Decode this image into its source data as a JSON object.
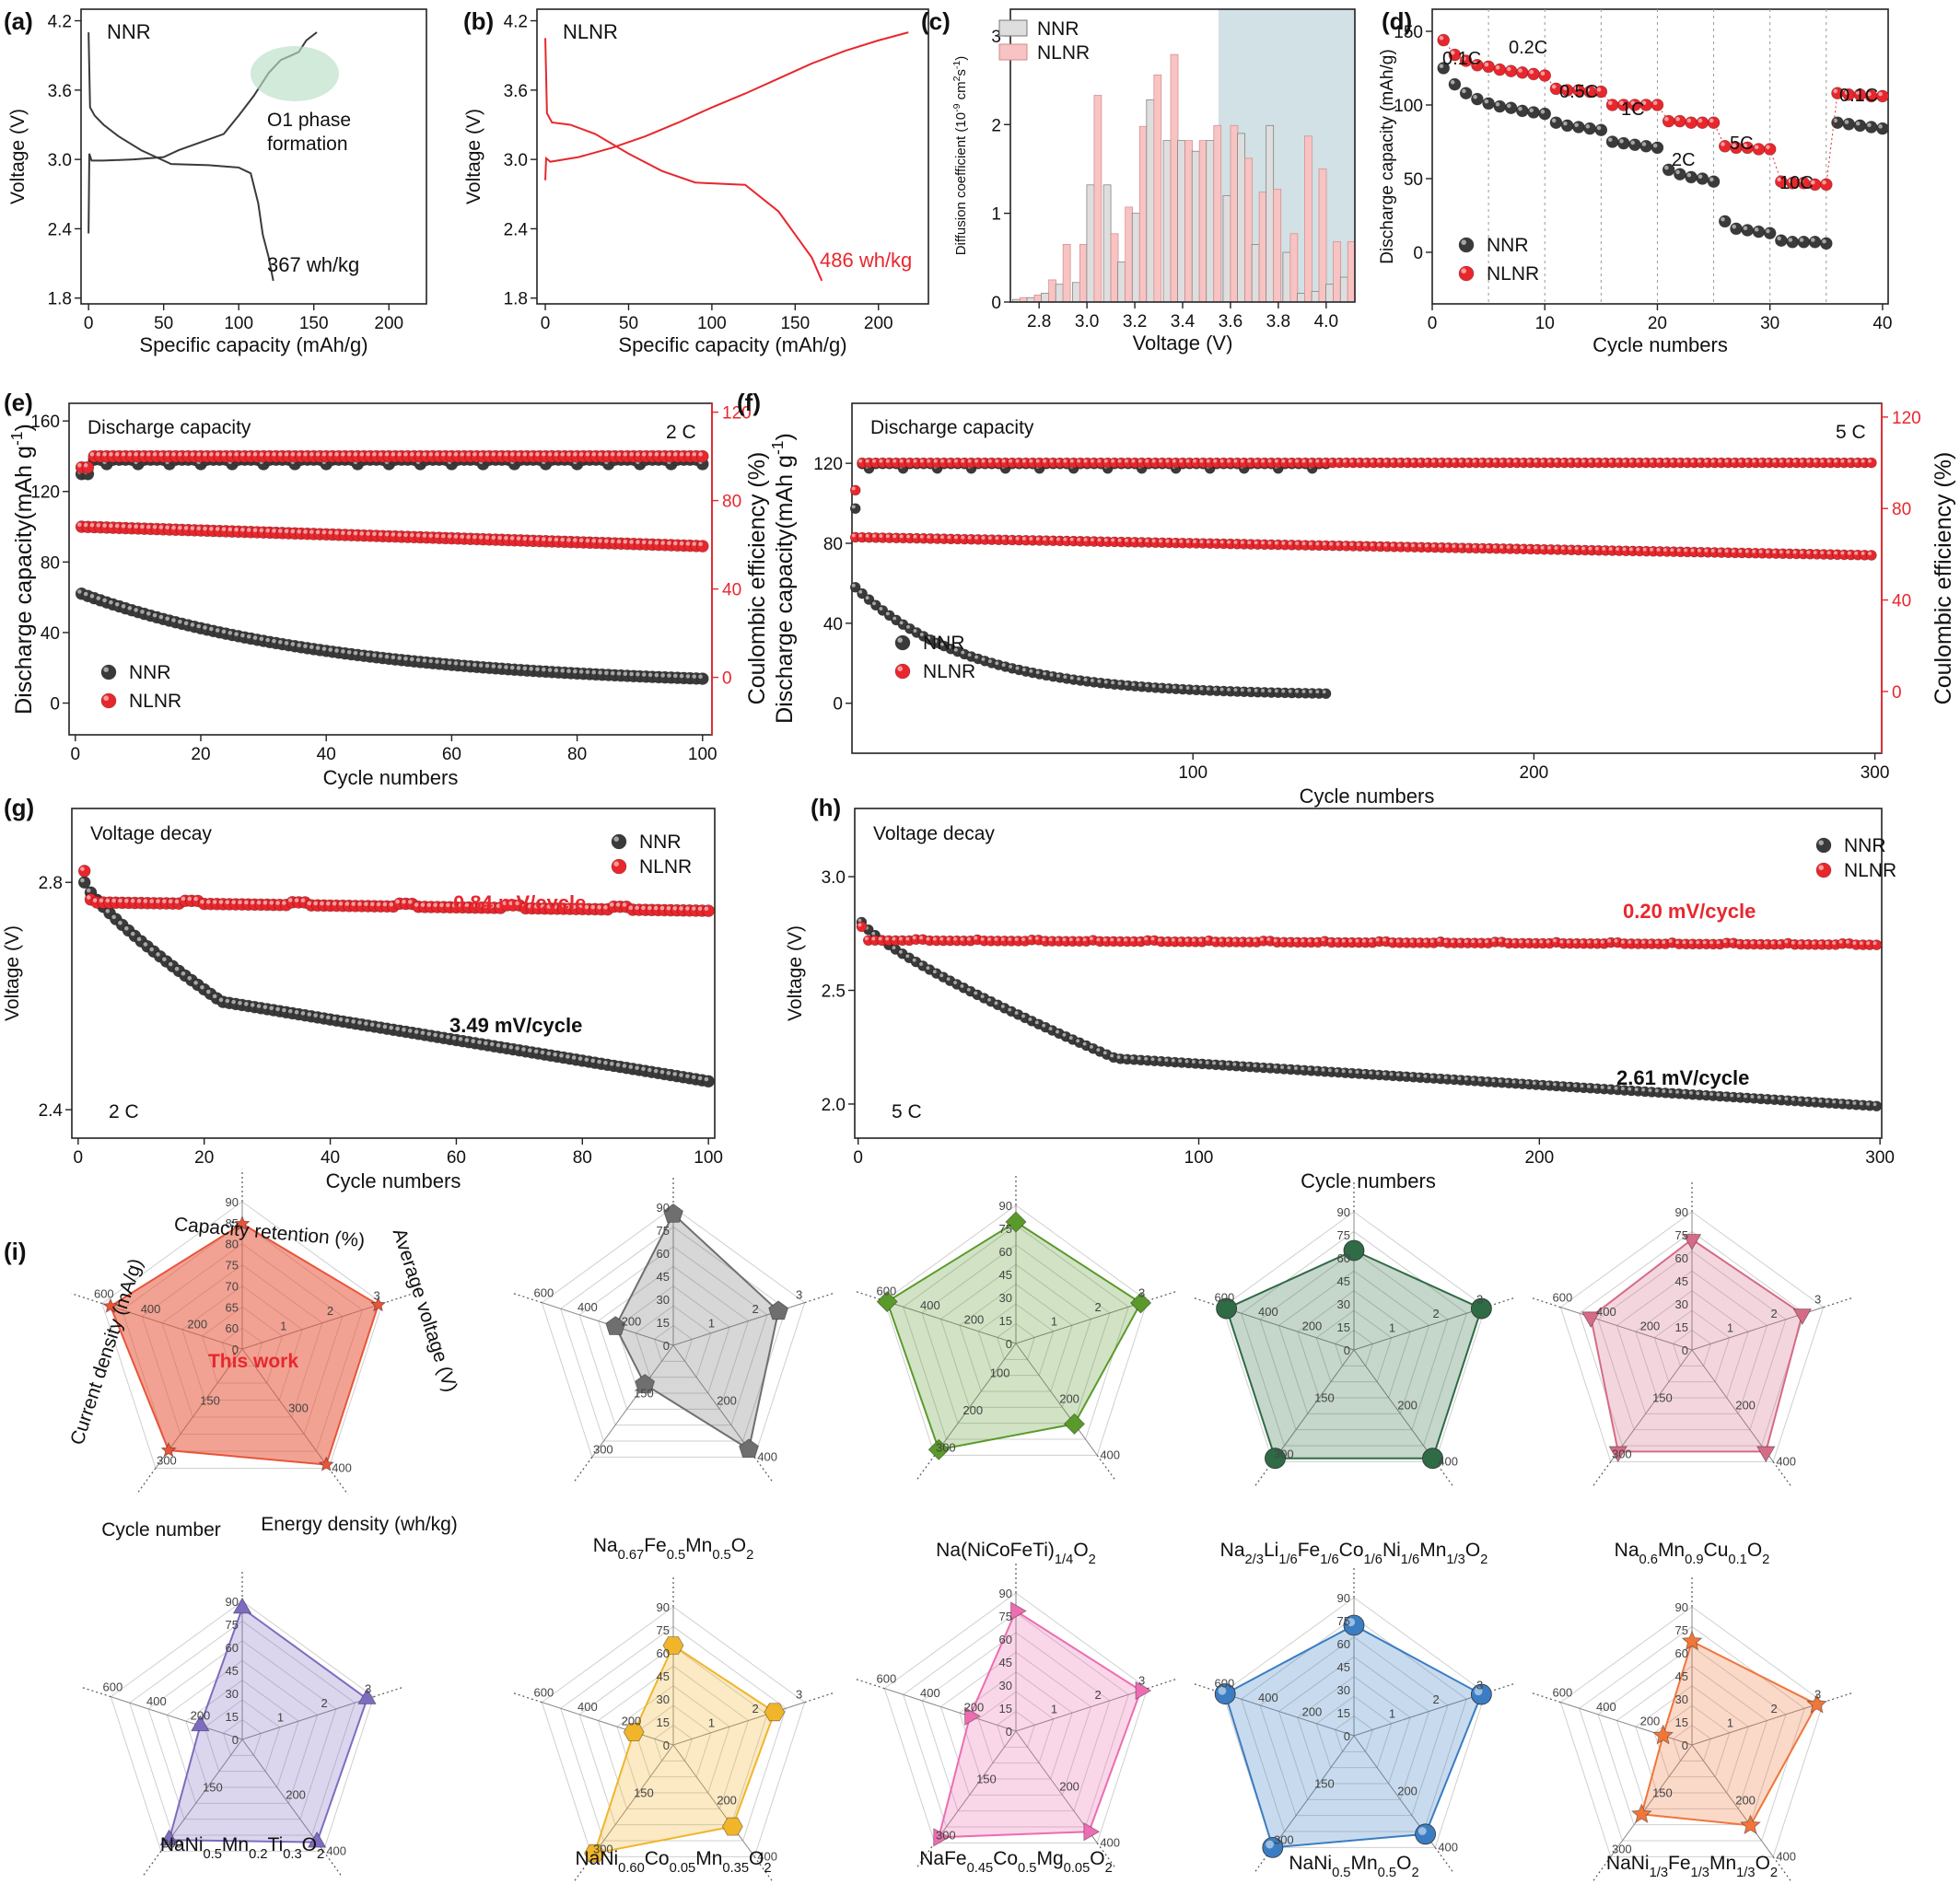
{
  "colors": {
    "nnr": "#3a3a3a",
    "nlnr": "#e8272d",
    "axis": "#222222"
  },
  "chart_data": [
    {
      "id": "a",
      "type": "line",
      "label": "(a)",
      "legend_text": "NNR",
      "annotation": [
        "O1 phase",
        "formation"
      ],
      "energy_label": "367 wh/kg",
      "xlabel": "Specific capacity (mAh/g)",
      "ylabel": "Voltage (V)",
      "xlim": [
        -5,
        225
      ],
      "ylim": [
        1.75,
        4.3
      ],
      "xticks": [
        0,
        50,
        100,
        150,
        200
      ],
      "yticks": [
        1.8,
        2.4,
        3.0,
        3.6,
        4.2
      ],
      "series": [
        {
          "name": "charge",
          "x": [
            0,
            0.5,
            2,
            10,
            30,
            50,
            60,
            75,
            90,
            100,
            110,
            120,
            128,
            135,
            140,
            145,
            152
          ],
          "y": [
            2.36,
            3.05,
            2.99,
            2.99,
            3.0,
            3.02,
            3.08,
            3.15,
            3.22,
            3.38,
            3.55,
            3.75,
            3.86,
            3.9,
            3.93,
            4.03,
            4.1
          ]
        },
        {
          "name": "discharge",
          "x": [
            0,
            1,
            4,
            10,
            20,
            35,
            55,
            80,
            100,
            108,
            113,
            116,
            120,
            123
          ],
          "y": [
            4.1,
            3.45,
            3.38,
            3.3,
            3.2,
            3.08,
            2.96,
            2.95,
            2.93,
            2.88,
            2.62,
            2.35,
            2.15,
            1.95
          ]
        }
      ]
    },
    {
      "id": "b",
      "type": "line",
      "label": "(b)",
      "legend_text": "NLNR",
      "energy_label": "486 wh/kg",
      "xlabel": "Specific capacity (mAh/g)",
      "ylabel": "Voltage (V)",
      "xlim": [
        -5,
        230
      ],
      "ylim": [
        1.75,
        4.3
      ],
      "xticks": [
        0,
        50,
        100,
        150,
        200
      ],
      "yticks": [
        1.8,
        2.4,
        3.0,
        3.6,
        4.2
      ],
      "series": [
        {
          "name": "charge",
          "x": [
            0,
            0.5,
            3,
            20,
            40,
            60,
            80,
            100,
            120,
            140,
            160,
            180,
            200,
            218
          ],
          "y": [
            2.82,
            3.01,
            2.98,
            3.02,
            3.1,
            3.2,
            3.32,
            3.45,
            3.57,
            3.7,
            3.83,
            3.94,
            4.03,
            4.1
          ]
        },
        {
          "name": "discharge",
          "x": [
            0,
            1,
            4,
            15,
            30,
            50,
            70,
            90,
            120,
            140,
            150,
            160,
            166
          ],
          "y": [
            4.05,
            3.4,
            3.32,
            3.3,
            3.22,
            3.05,
            2.9,
            2.8,
            2.78,
            2.55,
            2.35,
            2.15,
            1.95
          ]
        }
      ]
    },
    {
      "id": "c",
      "type": "bar",
      "label": "(c)",
      "xlabel": "Voltage (V)",
      "ylabel": "Diffusion coefficient (10⁻⁹ cm²s⁻¹)",
      "xlim": [
        2.68,
        4.12
      ],
      "ylim": [
        0,
        3.3
      ],
      "shade_from": 3.55,
      "xticks": [
        2.8,
        3.0,
        3.2,
        3.4,
        3.6,
        3.8,
        4.0
      ],
      "yticks": [
        0,
        1,
        2,
        3
      ],
      "x": [
        2.72,
        2.78,
        2.84,
        2.9,
        2.97,
        3.03,
        3.1,
        3.16,
        3.22,
        3.28,
        3.35,
        3.41,
        3.47,
        3.53,
        3.6,
        3.66,
        3.72,
        3.78,
        3.85,
        3.91,
        3.97,
        4.03,
        4.09
      ],
      "series": [
        {
          "name": "NNR",
          "values": [
            0.03,
            0.05,
            0.1,
            0.2,
            0.22,
            1.32,
            1.32,
            0.45,
            1.0,
            2.28,
            1.82,
            1.82,
            1.7,
            1.82,
            1.2,
            1.9,
            0.65,
            1.99,
            0.56,
            0.1,
            0.12,
            0.2,
            0.28
          ]
        },
        {
          "name": "NLNR",
          "values": [
            0.05,
            0.08,
            0.25,
            0.65,
            0.65,
            2.33,
            0.77,
            1.07,
            1.98,
            2.56,
            2.79,
            1.82,
            1.82,
            1.99,
            1.99,
            1.62,
            1.24,
            1.27,
            0.77,
            1.87,
            1.5,
            0.68,
            0.68
          ]
        }
      ]
    },
    {
      "id": "d",
      "type": "scatter",
      "label": "(d)",
      "xlabel": "Cycle numbers",
      "ylabel": "Discharge capacity (mAh/g)",
      "xlim": [
        0,
        40.5
      ],
      "ylim": [
        -35,
        165
      ],
      "xticks": [
        0,
        10,
        20,
        30,
        40
      ],
      "yticks": [
        0,
        50,
        100,
        150
      ],
      "rate_labels": [
        "0.1C",
        "0.2C",
        "0.5C",
        "1C",
        "2C",
        "5C",
        "10C",
        "0.1C"
      ],
      "series": [
        {
          "name": "NNR",
          "values": [
            125,
            114,
            108,
            104,
            101,
            99,
            98,
            96,
            95,
            94,
            88,
            86,
            85,
            84,
            83,
            75,
            74,
            73,
            72,
            71,
            56,
            53,
            51,
            50,
            48,
            21,
            16,
            15,
            14,
            13,
            8,
            7,
            7,
            7,
            6,
            88,
            87,
            86,
            85,
            84
          ]
        },
        {
          "name": "NLNR",
          "values": [
            144,
            134,
            130,
            127,
            126,
            124,
            123,
            122,
            121,
            120,
            111,
            110,
            110,
            109,
            109,
            100,
            100,
            100,
            100,
            100,
            89,
            89,
            88,
            88,
            88,
            72,
            71,
            71,
            70,
            70,
            48,
            47,
            47,
            46,
            46,
            108,
            107,
            107,
            106,
            106
          ]
        }
      ]
    },
    {
      "id": "e",
      "type": "scatter",
      "label": "(e)",
      "title": "Discharge capacity",
      "rate": "2 C",
      "xlabel": "Cycle numbers",
      "ylabel": "Discharge capacity(mAh g⁻¹)",
      "xlim": [
        -1,
        101.5
      ],
      "ylim": [
        -18,
        170
      ],
      "y2lim": [
        -26,
        124
      ],
      "xticks": [
        0,
        20,
        40,
        60,
        80,
        100
      ],
      "yticks": [
        0,
        40,
        80,
        120,
        160
      ],
      "y2ticks": [
        0,
        40,
        80,
        120
      ],
      "series": [
        {
          "name": "NNR",
          "cap_start": 62,
          "cap_end": 9,
          "ce_start": 92,
          "ce_end": 99
        },
        {
          "name": "NLNR",
          "cap_start": 100,
          "cap_end": 89,
          "ce_start": 95,
          "ce_end": 100
        }
      ]
    },
    {
      "id": "f",
      "type": "scatter",
      "label": "(f)",
      "title": "Discharge capacity",
      "rate": "5 C",
      "xlabel": "Cycle numbers",
      "ylabel": "Discharge capacity(mAh g⁻¹)",
      "y2label": "Coulombic efficiency (%)",
      "xlim": [
        0,
        302
      ],
      "ylim": [
        -25,
        150
      ],
      "y2lim": [
        -27,
        126
      ],
      "xticks": [
        100,
        200,
        300
      ],
      "yticks": [
        0,
        40,
        80,
        120
      ],
      "y2ticks": [
        0,
        40,
        80,
        120
      ],
      "series": [
        {
          "name": "NNR",
          "n": 140,
          "cap_start": 58,
          "cap_end": 4,
          "ce_start": 80,
          "ce_end": 100
        },
        {
          "name": "NLNR",
          "n": 300,
          "cap_start": 83,
          "cap_end": 74,
          "ce_start": 88,
          "ce_end": 100
        }
      ]
    },
    {
      "id": "g",
      "type": "scatter",
      "label": "(g)",
      "title": "Voltage decay",
      "rate": "2 C",
      "xlabel": "Cycle numbers",
      "ylabel": "Voltage (V)",
      "xlim": [
        -1,
        101
      ],
      "ylim": [
        2.35,
        2.93
      ],
      "xticks": [
        0,
        20,
        40,
        60,
        80,
        100
      ],
      "yticks": [
        2.4,
        2.8
      ],
      "annotations": {
        "nlnr": "0.84 mV/cycle",
        "nnr": "3.49 mV/cycle"
      },
      "series": [
        {
          "name": "NNR",
          "start": 2.8,
          "mid": 2.59,
          "end": 2.45
        },
        {
          "name": "NLNR",
          "start": 2.82,
          "mid": 2.765,
          "end": 2.75
        }
      ]
    },
    {
      "id": "h",
      "type": "scatter",
      "label": "(h)",
      "title": "Voltage decay",
      "rate": "5 C",
      "xlabel": "Cycle numbers",
      "ylabel": "Voltage (V)",
      "xlim": [
        -1,
        300.5
      ],
      "ylim": [
        1.85,
        3.3
      ],
      "xticks": [
        0,
        100,
        200,
        300
      ],
      "yticks": [
        2.0,
        2.5,
        3.0
      ],
      "annotations": {
        "nlnr": "0.20 mV/cycle",
        "nnr": "2.61 mV/cycle"
      },
      "series": [
        {
          "name": "NNR",
          "start": 2.8,
          "mid": 2.2,
          "end": 1.99
        },
        {
          "name": "NLNR",
          "start": 2.78,
          "mid": 2.72,
          "end": 2.7
        }
      ]
    },
    {
      "id": "i",
      "type": "radar",
      "label": "(i)",
      "axes": [
        "Capacity retention (%)",
        "Average voltage (V)",
        "Energy density (wh/kg)",
        "Cycle number",
        "Current  density (mA/g)"
      ],
      "tick_sets": {
        "capret": [
          "0",
          "60",
          "65",
          "70",
          "75",
          "80",
          "85",
          "90"
        ],
        "capret_std": [
          "0",
          "15",
          "30",
          "45",
          "60",
          "75",
          "90"
        ],
        "volt": [
          "1",
          "2",
          "3"
        ],
        "energy": [
          "200",
          "400"
        ],
        "energy_a": [
          "300",
          "400"
        ],
        "cycles": [
          "150",
          "300"
        ],
        "cycles_b": [
          "100",
          "200",
          "300"
        ],
        "current": [
          "200",
          "400",
          "600"
        ],
        "current_a": [
          "200",
          "400",
          "600"
        ]
      },
      "items": [
        {
          "name": "This work",
          "inner_label": "This work",
          "color": "#e8553a",
          "marker": "star",
          "values": [
            0.85,
            0.97,
            0.97,
            0.85,
            0.94
          ]
        },
        {
          "name": "Na0.67Fe0.5Mn0.5O2",
          "color": "#6f6f6f",
          "marker": "pentagon",
          "values": [
            0.95,
            0.8,
            0.93,
            0.35,
            0.44
          ]
        },
        {
          "name": "Na(NiCoFeTi)1/4O2",
          "color": "#5a9a2a",
          "marker": "diamond",
          "values": [
            0.88,
            0.95,
            0.72,
            0.95,
            0.98
          ]
        },
        {
          "name": "Na2/3Li1/6Fe1/6Co1/6Ni1/6Mn1/3O2",
          "color": "#2f6b45",
          "marker": "circle",
          "values": [
            0.72,
            0.97,
            0.97,
            0.97,
            0.97
          ]
        },
        {
          "name": "Na0.6Mn0.9Cu0.1O2",
          "color": "#d56b86",
          "marker": "tri-down",
          "values": [
            0.8,
            0.84,
            0.91,
            0.91,
            0.77
          ]
        },
        {
          "name": "NaNi0.5Mn0.2Ti0.3O2",
          "color": "#7f6bc0",
          "marker": "tri-up",
          "values": [
            0.95,
            0.95,
            0.92,
            0.9,
            0.32
          ]
        },
        {
          "name": "NaNi0.60Co0.05Mn0.35O2",
          "color": "#f0b52a",
          "marker": "hexagon",
          "values": [
            0.72,
            0.77,
            0.73,
            0.97,
            0.3
          ]
        },
        {
          "name": "NaFe0.45Co0.5Mg0.05O2",
          "color": "#ec6db1",
          "marker": "tri-right",
          "values": [
            0.87,
            0.95,
            0.9,
            0.95,
            0.35
          ]
        },
        {
          "name": "NaNi0.5Mn0.5O2",
          "color": "#3b7dc2",
          "marker": "sphere",
          "values": [
            0.8,
            0.97,
            0.88,
            1.0,
            0.98
          ]
        },
        {
          "name": "NaNi1/3Fe1/3Mn1/3O2",
          "color": "#f0763a",
          "marker": "star",
          "values": [
            0.75,
            0.95,
            0.72,
            0.62,
            0.22
          ]
        }
      ]
    }
  ]
}
